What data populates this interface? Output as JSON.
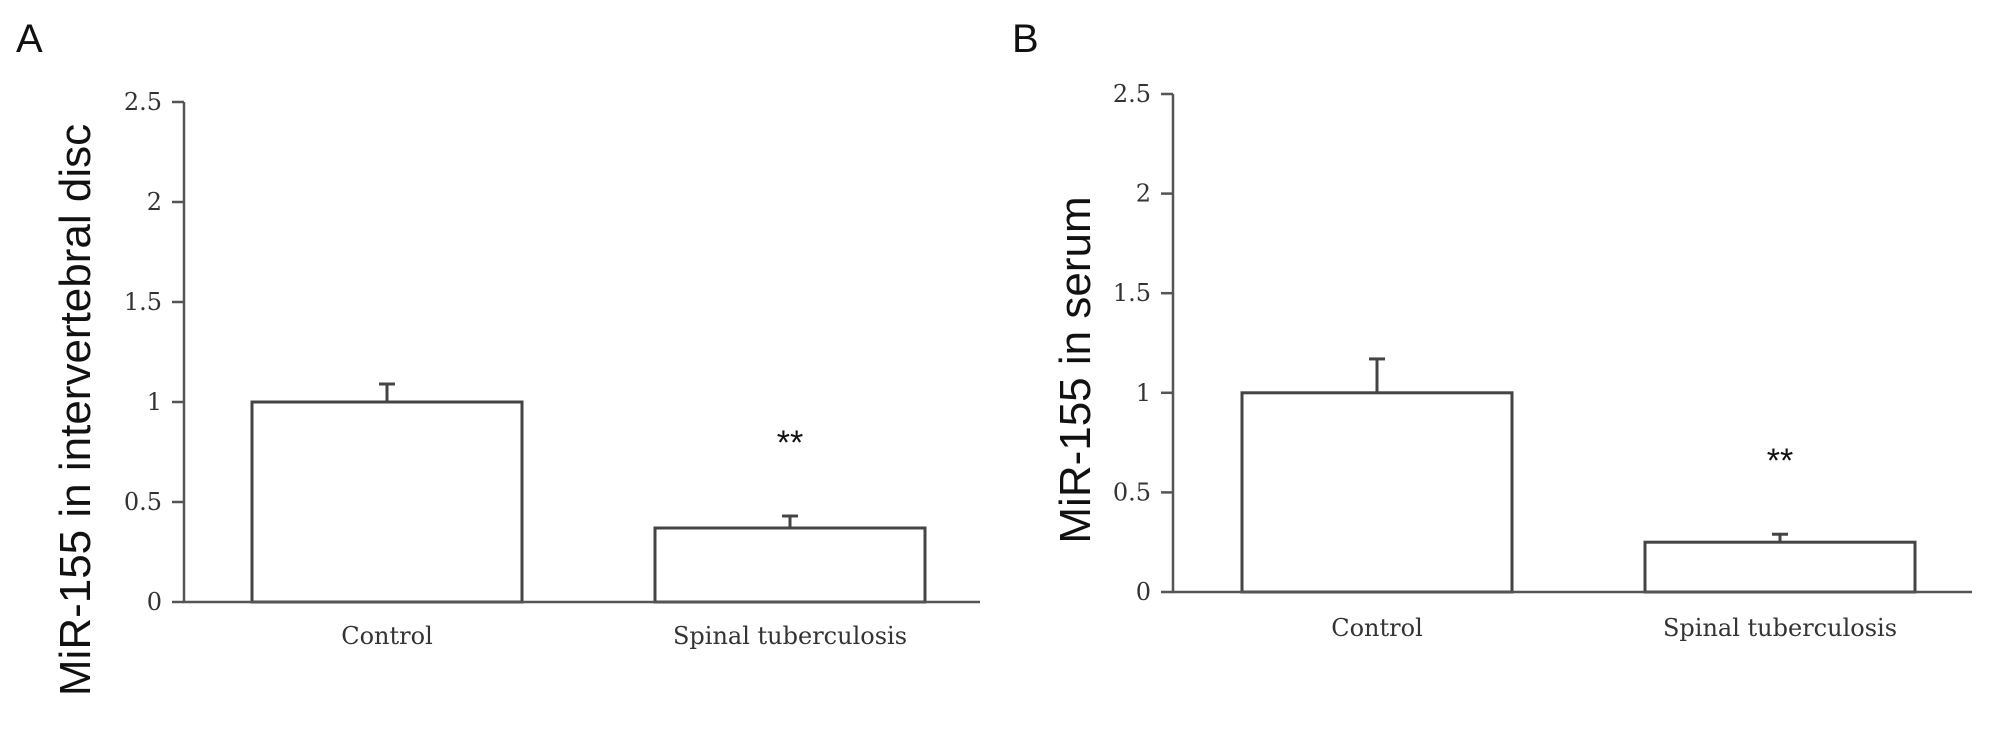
{
  "chart_data": [
    {
      "type": "bar",
      "panel": "A",
      "ylabel": "MiR-155 in intervertebral disc",
      "xlabel": "",
      "categories": [
        "Control",
        "Spinal tuberculosis"
      ],
      "values": [
        1.0,
        0.37
      ],
      "errors": [
        0.09,
        0.06
      ],
      "annotations": [
        "",
        "**"
      ],
      "ylim": [
        0,
        2.5
      ],
      "yticks": [
        "0",
        "0.5",
        "1",
        "1.5",
        "2",
        "2.5"
      ],
      "ytick_values": [
        0,
        0.5,
        1,
        1.5,
        2,
        2.5
      ],
      "grid": false
    },
    {
      "type": "bar",
      "panel": "B",
      "ylabel": "MiR-155 in serum",
      "xlabel": "",
      "categories": [
        "Control",
        "Spinal tuberculosis"
      ],
      "values": [
        1.0,
        0.25
      ],
      "errors": [
        0.17,
        0.04
      ],
      "annotations": [
        "",
        "**"
      ],
      "ylim": [
        0,
        2.5
      ],
      "yticks": [
        "0",
        "0.5",
        "1",
        "1.5",
        "2",
        "2.5"
      ],
      "ytick_values": [
        0,
        0.5,
        1,
        1.5,
        2,
        2.5
      ],
      "grid": false
    }
  ]
}
